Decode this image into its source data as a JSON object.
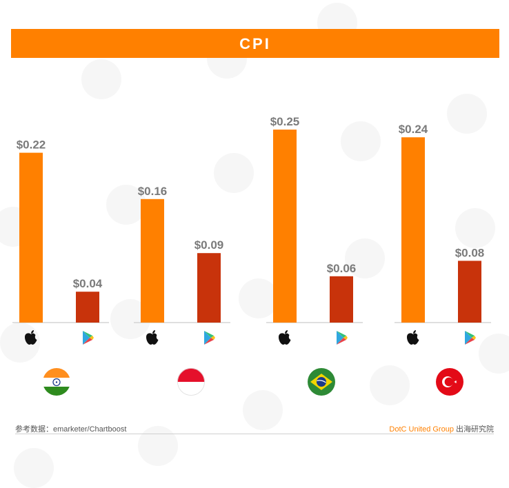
{
  "title": "CPI",
  "colors": {
    "ios": "#ff8000",
    "google_play": "#c8330b",
    "title_bar": "#ff8000",
    "label": "#7a7a7a",
    "axis": "#cccccc"
  },
  "chart_data": {
    "type": "bar",
    "title": "CPI",
    "xlabel": "",
    "ylabel": "",
    "ylim": [
      0,
      0.25
    ],
    "grid": false,
    "groups": [
      {
        "platform_icons": [
          "apple-icon",
          "google-play-icon"
        ],
        "flag": "india",
        "values": [
          0.22,
          0.04
        ],
        "labels": [
          "$0.22",
          "$0.04"
        ]
      },
      {
        "platform_icons": [
          "apple-icon",
          "google-play-icon"
        ],
        "flag": "indonesia",
        "values": [
          0.16,
          0.09
        ],
        "labels": [
          "$0.16",
          "$0.09"
        ]
      },
      {
        "platform_icons": [
          "apple-icon",
          "google-play-icon"
        ],
        "flag": "brazil",
        "values": [
          0.25,
          0.06
        ],
        "labels": [
          "$0.25",
          "$0.06"
        ]
      },
      {
        "platform_icons": [
          "apple-icon",
          "google-play-icon"
        ],
        "flag": "turkey",
        "values": [
          0.24,
          0.08
        ],
        "labels": [
          "$0.24",
          "$0.08"
        ]
      }
    ]
  },
  "footer": {
    "source": "参考数据：emarketer/Chartboost",
    "brand": "DotC United Group",
    "institute": " 出海研究院"
  }
}
